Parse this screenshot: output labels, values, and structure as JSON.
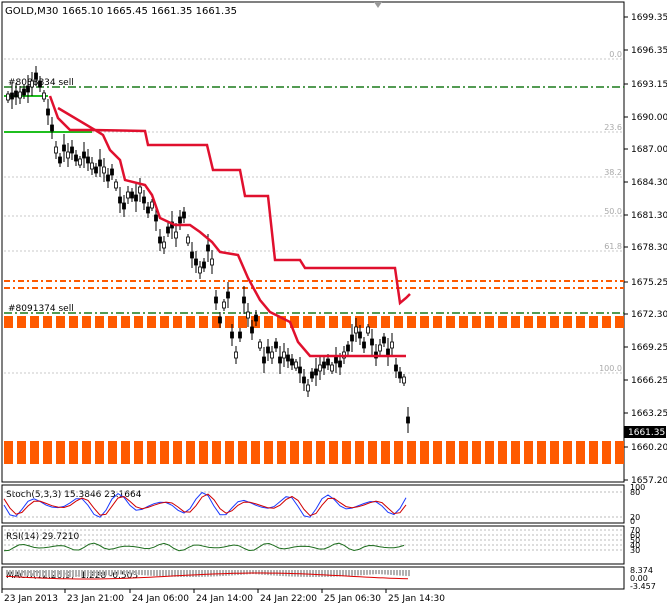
{
  "header": {
    "symbol_timeframe": "GOLD,M30",
    "ohlc": "1665.10 1665.45 1661.35 1661.35"
  },
  "price_axis": {
    "labels": [
      "1699.35",
      "1696.35",
      "1693.15",
      "1690.00",
      "1687.00",
      "1684.30",
      "1681.30",
      "1678.30",
      "1675.25",
      "1672.30",
      "1669.25",
      "1666.25",
      "1663.25",
      "1660.20",
      "1657.20"
    ],
    "current_price": "1661.35"
  },
  "fib_levels": [
    "0.0",
    "23.6",
    "38.2",
    "50.0",
    "61.8",
    "100.0"
  ],
  "orders": [
    {
      "label": "#8088834 sell"
    },
    {
      "label": "#8091374 sell"
    }
  ],
  "stoch": {
    "label": "Stoch(5,3,3) 15.3846 23.1664",
    "levels": [
      "100",
      "80",
      "20",
      "0"
    ]
  },
  "rsi": {
    "label": "RSI(14) 29.7210",
    "levels": [
      "70",
      "60",
      "50",
      "40",
      "30"
    ]
  },
  "macd": {
    "label": "MACD(12,26,9) -1.228 -0.503",
    "levels": [
      "8.374",
      "0.00",
      "-3.457"
    ]
  },
  "time_axis": [
    "23 Jan 2013",
    "23 Jan 21:00",
    "24 Jan 06:00",
    "24 Jan 14:00",
    "24 Jan 22:00",
    "25 Jan 06:30",
    "25 Jan 14:30"
  ],
  "colors": {
    "background": "#ffffff",
    "candle": "#000000",
    "trailing_stop": "#e0102e",
    "green_line": "#1fbf1f",
    "order_dash": "#1a7a1a",
    "zone_orange": "#ff5a00",
    "stoch_main": "#1a3aff",
    "stoch_signal": "#d00000",
    "rsi_line": "#1e6e1e",
    "macd_hist": "#b0b0b0",
    "macd_signal": "#e00000",
    "fib": "#bbbbbb",
    "grid": "#cccccc"
  }
}
